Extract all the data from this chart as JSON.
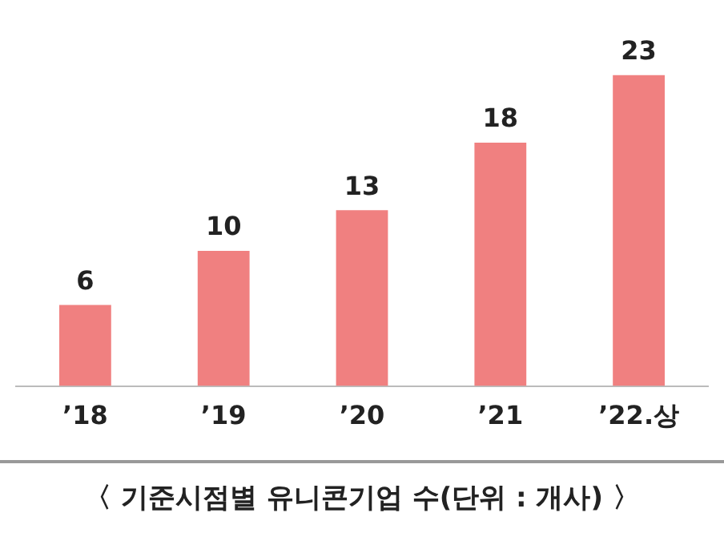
{
  "chart_data": {
    "type": "bar",
    "categories": [
      "’18",
      "’19",
      "’20",
      "’21",
      "’22.상"
    ],
    "values": [
      6,
      10,
      13,
      18,
      23
    ],
    "color": "#f08080",
    "data_labels": true,
    "grid": false,
    "legend": false,
    "annotations": [
      "〈 기준시점별 유니콘기업 수(단위 : 개사) 〉"
    ]
  }
}
